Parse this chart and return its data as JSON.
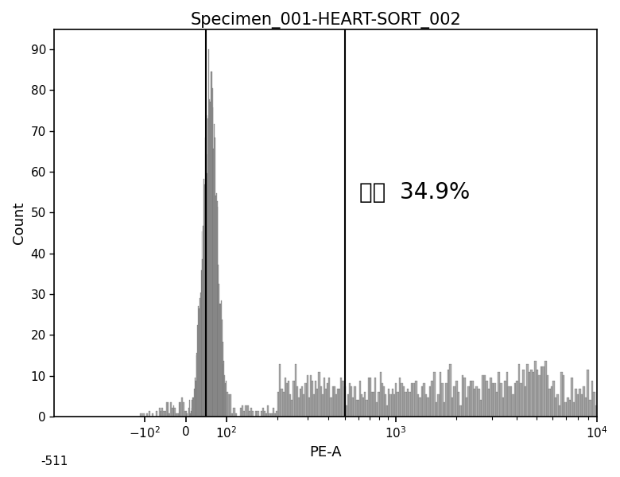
{
  "title": "Specimen_001-HEART-SORT_002",
  "xlabel": "PE-A",
  "ylabel": "Count",
  "yticks": [
    0,
    10,
    20,
    30,
    40,
    50,
    60,
    70,
    80,
    90
  ],
  "ylim": [
    0,
    95
  ],
  "annotation_text": "心：  34.9%",
  "gate_pe_value": 500,
  "marker_pe_value": 50,
  "background_color": "#ffffff",
  "hist_fill_color": "#aaaaaa",
  "hist_edge_color": "#333333",
  "title_fontsize": 15,
  "label_fontsize": 13,
  "tick_fontsize": 11,
  "figsize": [
    7.8,
    6.0
  ],
  "dpi": 100,
  "xtick_labels": [
    "-10²",
    "0",
    "10²",
    "10³",
    "10⁴"
  ],
  "xtick_pe_vals": [
    -100,
    0,
    100,
    1000,
    10000
  ],
  "minus511_label": "-511"
}
